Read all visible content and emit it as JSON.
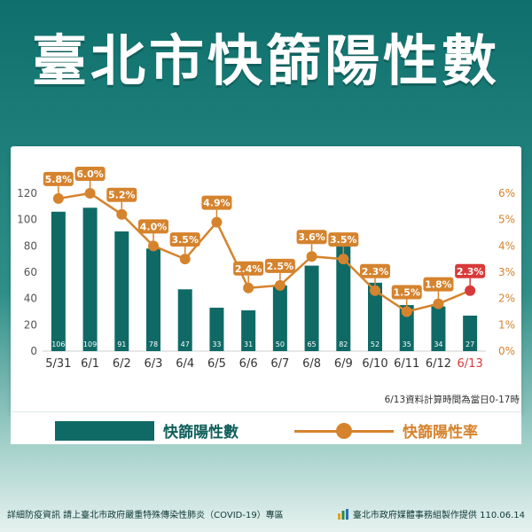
{
  "title": "臺北市快篩陽性數",
  "note": "6/13資料計算時間為當日0-17時",
  "legend": {
    "bars": "快篩陽性數",
    "line": "快篩陽性率"
  },
  "footer": {
    "left": "詳細防疫資訊 請上臺北市政府嚴重特殊傳染性肺炎（COVID-19）專區",
    "right": "臺北市政府媒體事務組製作提供 110.06.14"
  },
  "colors": {
    "bar": "#0f6a66",
    "line": "#d5832d",
    "highlight": "#d83a3a",
    "axis": "#555555"
  },
  "chart_data": {
    "type": "bar",
    "categories": [
      "5/31",
      "6/1",
      "6/2",
      "6/3",
      "6/4",
      "6/5",
      "6/6",
      "6/7",
      "6/8",
      "6/9",
      "6/10",
      "6/11",
      "6/12",
      "6/13"
    ],
    "highlight_last": true,
    "series": [
      {
        "name": "快篩陽性數",
        "type": "bar",
        "axis": "left",
        "values": [
          106,
          109,
          91,
          78,
          47,
          33,
          31,
          50,
          65,
          82,
          52,
          35,
          34,
          27
        ]
      },
      {
        "name": "快篩陽性率",
        "type": "line",
        "axis": "right",
        "values": [
          5.8,
          6.0,
          5.2,
          4.0,
          3.5,
          4.9,
          2.4,
          2.5,
          3.6,
          3.5,
          2.3,
          1.5,
          1.8,
          2.3
        ],
        "point_labels": [
          "5.8%",
          "6.0%",
          "5.2%",
          "4.0%",
          "3.5%",
          "4.9%",
          "2.4%",
          "2.5%",
          "3.6%",
          "3.5%",
          "2.3%",
          "1.5%",
          "1.8%",
          "2.3%"
        ]
      }
    ],
    "y_left": {
      "lim": [
        0,
        120
      ],
      "ticks": [
        "0",
        "20",
        "40",
        "60",
        "80",
        "100",
        "120"
      ]
    },
    "y_right": {
      "lim": [
        0,
        6
      ],
      "ticks": [
        "0%",
        "1%",
        "2%",
        "3%",
        "4%",
        "5%",
        "6%"
      ]
    },
    "grid": false
  }
}
